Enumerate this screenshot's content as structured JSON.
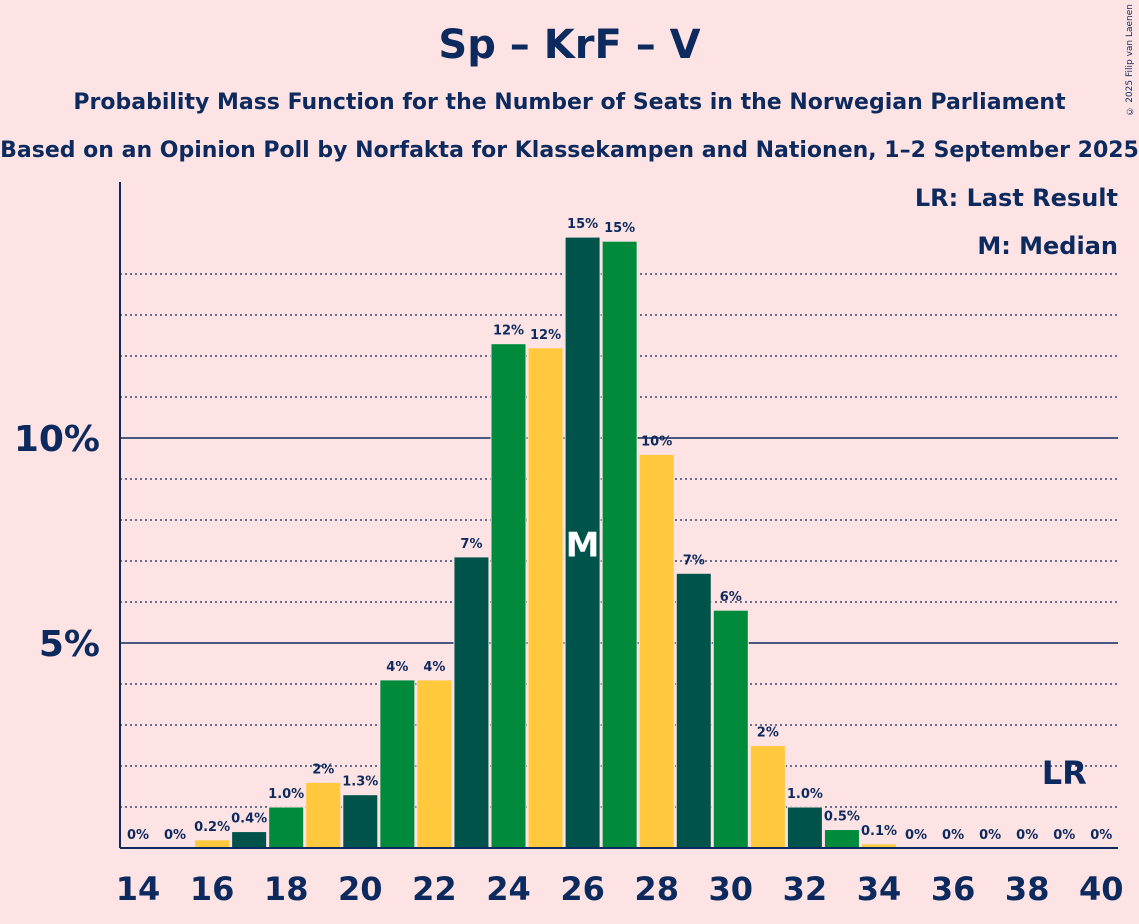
{
  "title": "Sp – KrF – V",
  "subtitle": "Probability Mass Function for the Number of Seats in the Norwegian Parliament",
  "subtitle2": "Based on an Opinion Poll by Norfakta for Klassekampen and Nationen, 1–2 September 2025",
  "copyright": "© 2025 Filip van Laenen",
  "legend": {
    "last_result": "LR: Last Result",
    "median": "M: Median"
  },
  "chart_data": {
    "type": "bar",
    "x": [
      14,
      15,
      16,
      17,
      18,
      19,
      20,
      21,
      22,
      23,
      24,
      25,
      26,
      27,
      28,
      29,
      30,
      31,
      32,
      33,
      34,
      35,
      36,
      37,
      38,
      39,
      40
    ],
    "values": [
      0,
      0,
      0.2,
      0.4,
      1.0,
      1.6,
      1.3,
      4.1,
      4.1,
      7.1,
      12.3,
      12.2,
      14.9,
      14.8,
      9.6,
      6.7,
      5.8,
      2.5,
      1.0,
      0.45,
      0.1,
      0,
      0,
      0,
      0,
      0,
      0
    ],
    "labels": [
      "0%",
      "0%",
      "0.2%",
      "0.4%",
      "1.0%",
      "2%",
      "1.3%",
      "4%",
      "4%",
      "7%",
      "12%",
      "12%",
      "15%",
      "15%",
      "10%",
      "7%",
      "6%",
      "2%",
      "1.0%",
      "0.5%",
      "0.1%",
      "0%",
      "0%",
      "0%",
      "0%",
      "0%",
      "0%"
    ],
    "x_ticks": [
      "14",
      "16",
      "18",
      "20",
      "22",
      "24",
      "26",
      "28",
      "30",
      "32",
      "34",
      "36",
      "38",
      "40"
    ],
    "y_ticks": [
      "5%",
      "10%"
    ],
    "ylim": [
      0,
      16
    ],
    "colors": [
      "#00534a",
      "#008a3c",
      "#ffc83d"
    ],
    "median_seat": 26,
    "median_label": "M",
    "last_result_seat": 39,
    "last_result_label": "LR",
    "axis_color": "#0d2a5e"
  }
}
